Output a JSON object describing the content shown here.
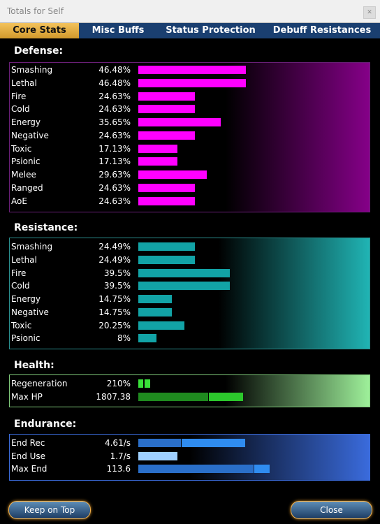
{
  "window": {
    "title": "Totals for Self"
  },
  "tabs": [
    {
      "label": "Core Stats",
      "active": true
    },
    {
      "label": "Misc Buffs",
      "active": false
    },
    {
      "label": "Status Protection",
      "active": false
    },
    {
      "label": "Debuff Resistances",
      "active": false
    }
  ],
  "defense": {
    "title": "Defense:",
    "color": "#ff00ff",
    "items": [
      {
        "label": "Smashing",
        "value": "46.48%",
        "fraction": 0.4648
      },
      {
        "label": "Lethal",
        "value": "46.48%",
        "fraction": 0.4648
      },
      {
        "label": "Fire",
        "value": "24.63%",
        "fraction": 0.2463
      },
      {
        "label": "Cold",
        "value": "24.63%",
        "fraction": 0.2463
      },
      {
        "label": "Energy",
        "value": "35.65%",
        "fraction": 0.3565
      },
      {
        "label": "Negative",
        "value": "24.63%",
        "fraction": 0.2463
      },
      {
        "label": "Toxic",
        "value": "17.13%",
        "fraction": 0.1713
      },
      {
        "label": "Psionic",
        "value": "17.13%",
        "fraction": 0.1713
      },
      {
        "label": "Melee",
        "value": "29.63%",
        "fraction": 0.2963
      },
      {
        "label": "Ranged",
        "value": "24.63%",
        "fraction": 0.2463
      },
      {
        "label": "AoE",
        "value": "24.63%",
        "fraction": 0.2463
      }
    ]
  },
  "resistance": {
    "title": "Resistance:",
    "color": "#12a3a6",
    "items": [
      {
        "label": "Smashing",
        "value": "24.49%",
        "fraction": 0.2449
      },
      {
        "label": "Lethal",
        "value": "24.49%",
        "fraction": 0.2449
      },
      {
        "label": "Fire",
        "value": "39.5%",
        "fraction": 0.395
      },
      {
        "label": "Cold",
        "value": "39.5%",
        "fraction": 0.395
      },
      {
        "label": "Energy",
        "value": "14.75%",
        "fraction": 0.1475
      },
      {
        "label": "Negative",
        "value": "14.75%",
        "fraction": 0.1475
      },
      {
        "label": "Toxic",
        "value": "20.25%",
        "fraction": 0.2025
      },
      {
        "label": "Psionic",
        "value": "8%",
        "fraction": 0.08
      }
    ]
  },
  "health": {
    "title": "Health:",
    "items": [
      {
        "label": "Regeneration",
        "value": "210%",
        "fraction": 0.05
      },
      {
        "label": "Max HP",
        "value": "1807.38",
        "fraction": 0.45
      }
    ]
  },
  "endurance": {
    "title": "Endurance:",
    "items": [
      {
        "label": "End Rec",
        "value": "4.61/s",
        "fraction": 0.46
      },
      {
        "label": "End Use",
        "value": "1.7/s",
        "fraction": 0.17
      },
      {
        "label": "Max End",
        "value": "113.6",
        "fraction": 0.57
      }
    ]
  },
  "buttons": {
    "keep_on_top": "Keep on Top",
    "close": "Close"
  }
}
